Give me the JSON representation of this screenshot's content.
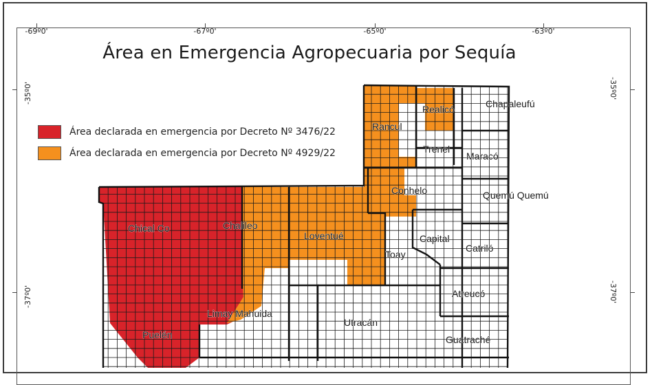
{
  "title": "Área en Emergencia Agropecuaria por Sequía",
  "graticule": {
    "top_labels": [
      "-69º0'",
      "-67º0'",
      "-65º0'",
      "-63º0'"
    ],
    "left_labels": [
      "-35º0'",
      "-37º0'"
    ],
    "right_labels": [
      "-35º0'",
      "-37º0'"
    ]
  },
  "legend": {
    "items": [
      {
        "label": "Área declarada en emergencia por Decreto Nº 3476/22",
        "color": "#d8232a"
      },
      {
        "label": "Área declarada en emergencia por Decreto Nº 4929/22",
        "color": "#f5901e"
      }
    ]
  },
  "colors": {
    "red": "#d8232a",
    "orange": "#f5901e",
    "white": "#ffffff",
    "grid": "#1a1a1a"
  },
  "departments": [
    {
      "name": "Chapaleufú"
    },
    {
      "name": "Realicó"
    },
    {
      "name": "Rancul"
    },
    {
      "name": "Trenel"
    },
    {
      "name": "Maracó"
    },
    {
      "name": "Conhelo"
    },
    {
      "name": "Quemú Quemú"
    },
    {
      "name": "Chical Co"
    },
    {
      "name": "Chalileo"
    },
    {
      "name": "Loventué"
    },
    {
      "name": "Capital"
    },
    {
      "name": "Catriló"
    },
    {
      "name": "Toay"
    },
    {
      "name": "Atreucó"
    },
    {
      "name": "Limay Mahuida"
    },
    {
      "name": "Utracán"
    },
    {
      "name": "Puelén"
    },
    {
      "name": "Guatraché"
    }
  ]
}
